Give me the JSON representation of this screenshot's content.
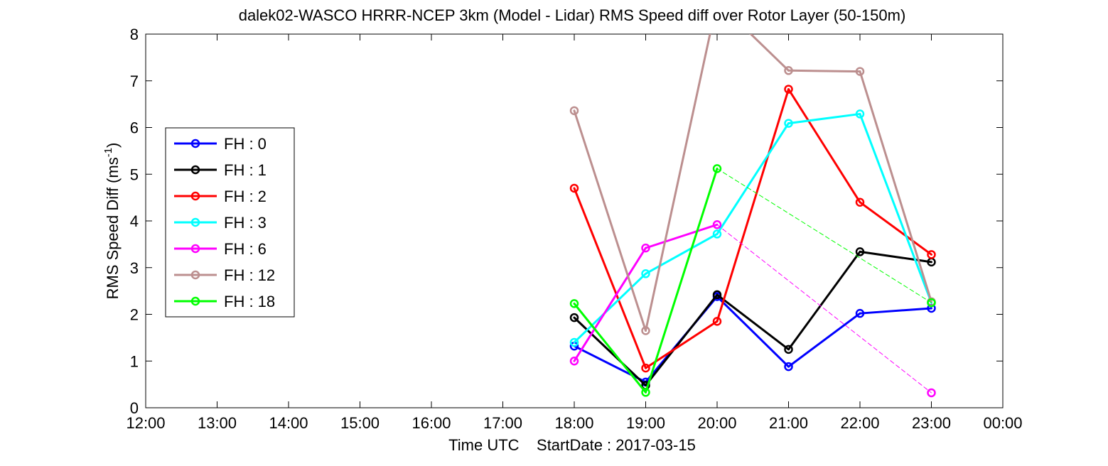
{
  "chart_data": {
    "type": "line",
    "title": "dalek02-WASCO HRRR-NCEP 3km (Model - Lidar) RMS Speed diff over Rotor Layer (50-150m)",
    "xlabel": "Time UTC    StartDate : 2017-03-15",
    "ylabel_main": "RMS Speed Diff (ms",
    "ylabel_sup": "-1",
    "ylabel_close": ")",
    "x_ticks": [
      "12:00",
      "13:00",
      "14:00",
      "15:00",
      "16:00",
      "17:00",
      "18:00",
      "19:00",
      "20:00",
      "21:00",
      "22:00",
      "23:00",
      "00:00"
    ],
    "x_range_hours": [
      12,
      24
    ],
    "y_ticks": [
      0,
      1,
      2,
      3,
      4,
      5,
      6,
      7,
      8
    ],
    "ylim": [
      0,
      8
    ],
    "legend_position": "left",
    "grid": false,
    "series": [
      {
        "name": "FH : 0",
        "color": "#0000ff",
        "x": [
          18,
          19,
          20,
          21,
          22,
          23
        ],
        "y": [
          1.32,
          0.55,
          2.38,
          0.88,
          2.02,
          2.13
        ],
        "dashed_gaps": []
      },
      {
        "name": "FH : 1",
        "color": "#000000",
        "x": [
          18,
          19,
          20,
          21,
          22,
          23
        ],
        "y": [
          1.93,
          0.48,
          2.42,
          1.25,
          3.34,
          3.12
        ],
        "dashed_gaps": []
      },
      {
        "name": "FH : 2",
        "color": "#ff0000",
        "x": [
          18,
          19,
          20,
          21,
          22,
          23
        ],
        "y": [
          4.7,
          0.85,
          1.85,
          6.82,
          4.4,
          3.28
        ],
        "dashed_gaps": []
      },
      {
        "name": "FH : 3",
        "color": "#00ffff",
        "x": [
          18,
          19,
          20,
          21,
          22,
          23
        ],
        "y": [
          1.4,
          2.87,
          3.72,
          6.09,
          6.29,
          2.25
        ],
        "dashed_gaps": []
      },
      {
        "name": "FH : 6",
        "color": "#ff00ff",
        "x": [
          18,
          19,
          20,
          23
        ],
        "y": [
          1.0,
          3.42,
          3.92,
          0.32
        ],
        "dashed_gaps": [
          [
            20,
            23
          ]
        ]
      },
      {
        "name": "FH : 12",
        "color": "#bc8f8f",
        "x": [
          18,
          19,
          20,
          21,
          22,
          23
        ],
        "y": [
          6.36,
          1.65,
          8.7,
          7.22,
          7.2,
          2.27
        ],
        "dashed_gaps": []
      },
      {
        "name": "FH : 18",
        "color": "#00ff00",
        "x": [
          18,
          19,
          20,
          23
        ],
        "y": [
          2.23,
          0.33,
          5.12,
          2.25
        ],
        "dashed_gaps": [
          [
            20,
            23
          ]
        ]
      }
    ]
  }
}
